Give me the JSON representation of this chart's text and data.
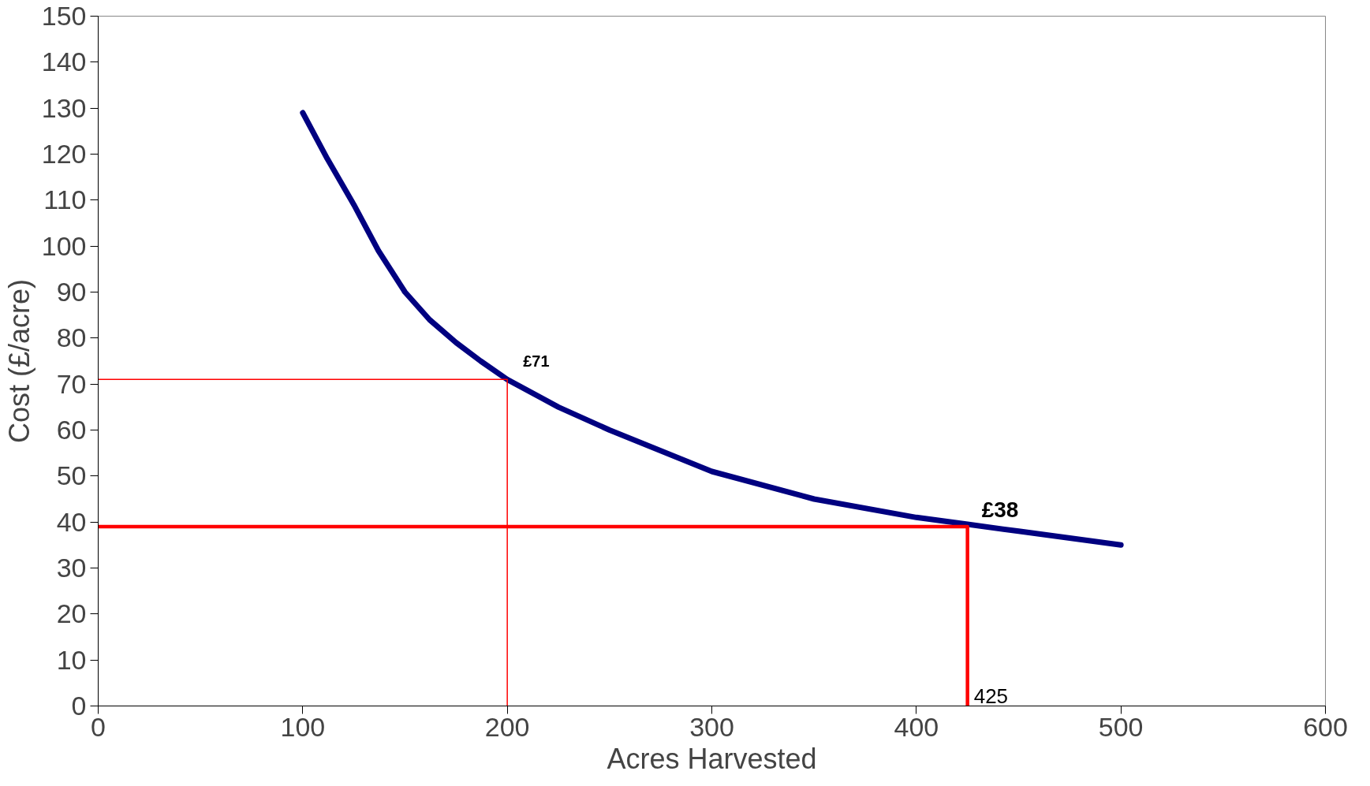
{
  "chart_data": {
    "type": "line",
    "xlabel": "Acres Harvested",
    "ylabel": "Cost (£/acre)",
    "xlim": [
      0,
      600
    ],
    "xticks": [
      0,
      100,
      200,
      300,
      400,
      500,
      600
    ],
    "ylim": [
      0,
      150
    ],
    "yticks": [
      0,
      10,
      20,
      30,
      40,
      50,
      60,
      70,
      80,
      90,
      100,
      110,
      120,
      130,
      140,
      150
    ],
    "grid": false,
    "marker": "none",
    "line_style": "solid",
    "series": [
      {
        "color": "#000080",
        "x": [
          100,
          112,
          125,
          137,
          150,
          162,
          175,
          187,
          200,
          225,
          250,
          300,
          350,
          400,
          425,
          450,
          500
        ],
        "values": [
          129,
          119,
          109,
          99,
          90,
          84,
          79,
          75,
          71,
          65,
          60,
          51,
          45,
          41,
          39.5,
          38,
          35
        ]
      },
      {
        "color": "#ff0000",
        "x": [
          0,
          200,
          200
        ],
        "values": [
          71,
          71,
          0
        ]
      },
      {
        "color": "#ff0000",
        "x": [
          0,
          425,
          425
        ],
        "values": [
          39,
          39,
          0
        ]
      }
    ],
    "annotations": [
      "£71",
      "£38",
      "425"
    ]
  }
}
